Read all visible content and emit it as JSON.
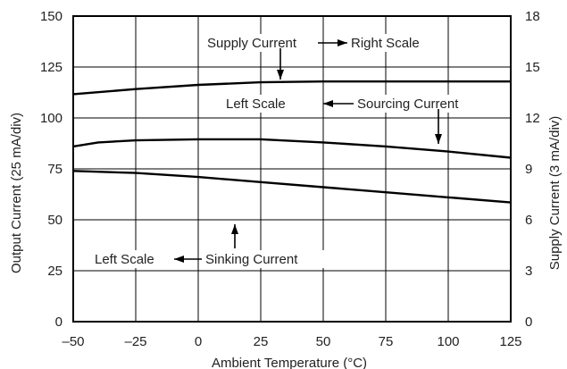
{
  "chart_data": {
    "type": "line",
    "title": "",
    "xlabel": "Ambient Temperature (°C)",
    "ylabel": "Output Current (25 mA/div)",
    "y2label": "Supply Current (3 mA/div)",
    "xlim": [
      -50,
      125
    ],
    "ylim": [
      0,
      150
    ],
    "y2lim": [
      0,
      18
    ],
    "xticks": [
      "–50",
      "–25",
      "0",
      "25",
      "50",
      "75",
      "100",
      "125"
    ],
    "yticks": [
      "0",
      "25",
      "50",
      "75",
      "100",
      "125",
      "150"
    ],
    "y2ticks": [
      "0",
      "3",
      "6",
      "9",
      "12",
      "15",
      "18"
    ],
    "grid": true,
    "series": [
      {
        "name": "Supply Current",
        "axis": "right",
        "x": [
          -50,
          -25,
          0,
          25,
          50,
          75,
          100,
          125
        ],
        "values": [
          13.4,
          13.7,
          13.95,
          14.1,
          14.15,
          14.15,
          14.15,
          14.15
        ]
      },
      {
        "name": "Sourcing Current",
        "axis": "left",
        "x": [
          -50,
          -40,
          -25,
          0,
          25,
          50,
          75,
          100,
          125
        ],
        "values": [
          86,
          88,
          89,
          89.5,
          89.5,
          88,
          86,
          83.5,
          80.5
        ]
      },
      {
        "name": "Sinking Current",
        "axis": "left",
        "x": [
          -50,
          -25,
          0,
          25,
          50,
          75,
          100,
          125
        ],
        "values": [
          74,
          73,
          71,
          68.5,
          66,
          63.5,
          61,
          58.5
        ]
      }
    ],
    "annotations": [
      {
        "left": "Supply Current",
        "right": "Right Scale",
        "arrow": "right"
      },
      {
        "left": "Left Scale",
        "right": "Sourcing Current",
        "arrow": "left"
      },
      {
        "left": "Left Scale",
        "right": "Sinking Current",
        "arrow": "left"
      }
    ]
  }
}
